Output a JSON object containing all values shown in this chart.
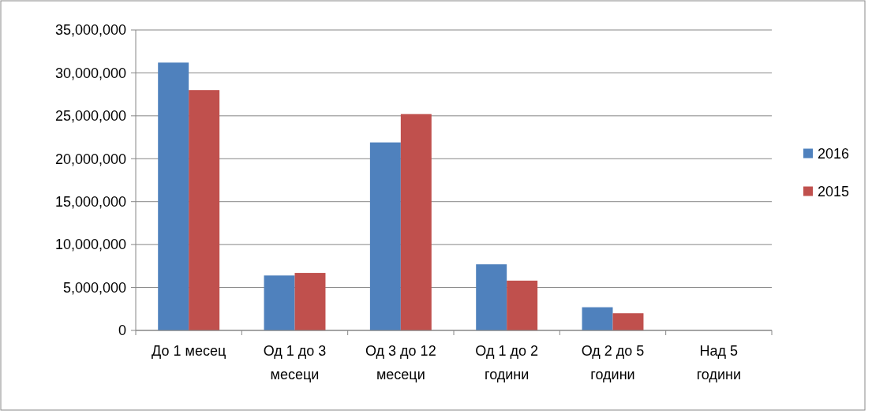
{
  "chart_data": {
    "type": "bar",
    "categories": [
      "До 1 месец",
      "Од 1 до 3 месеци",
      "Од 3 до 12 месеци",
      "Од 1 до 2 години",
      "Од 2 до 5 години",
      "Над 5 години"
    ],
    "series": [
      {
        "name": "2016",
        "color": "#4f81bd",
        "values": [
          31200000,
          6400000,
          21900000,
          7700000,
          2700000,
          0
        ]
      },
      {
        "name": "2015",
        "color": "#c0504d",
        "values": [
          28000000,
          6700000,
          25200000,
          5800000,
          2000000,
          0
        ]
      }
    ],
    "ylim": [
      0,
      35000000
    ],
    "yticks": [
      {
        "value": 0,
        "label": "0"
      },
      {
        "value": 5000000,
        "label": "5,000,000"
      },
      {
        "value": 10000000,
        "label": "10,000,000"
      },
      {
        "value": 15000000,
        "label": "15,000,000"
      },
      {
        "value": 20000000,
        "label": "20,000,000"
      },
      {
        "value": 25000000,
        "label": "25,000,000"
      },
      {
        "value": 30000000,
        "label": "30,000,000"
      },
      {
        "value": 35000000,
        "label": "35,000,000"
      }
    ],
    "grid": "y",
    "legend": "right"
  }
}
